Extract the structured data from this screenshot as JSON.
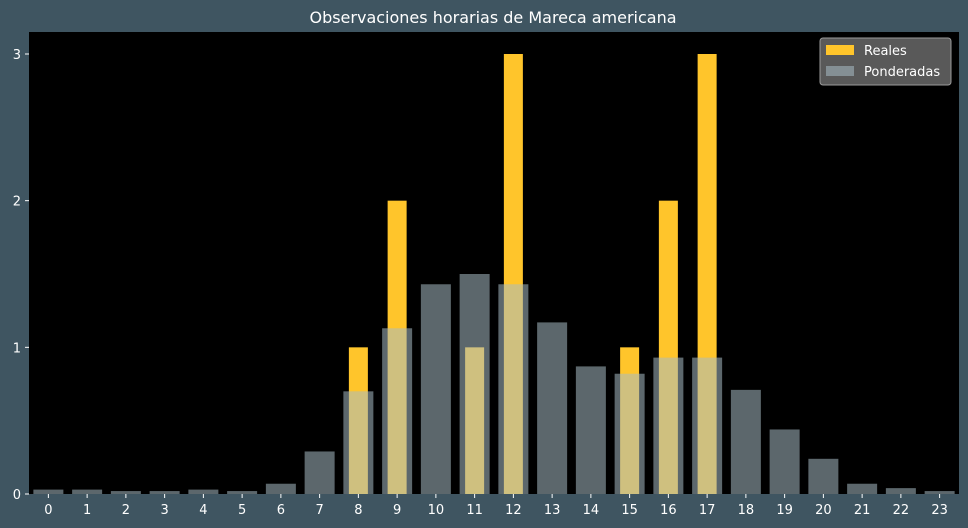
{
  "chart_data": {
    "type": "bar",
    "title": "Observaciones horarias de Mareca americana",
    "xlabel": "",
    "ylabel": "",
    "categories": [
      "0",
      "1",
      "2",
      "3",
      "4",
      "5",
      "6",
      "7",
      "8",
      "9",
      "10",
      "11",
      "12",
      "13",
      "14",
      "15",
      "16",
      "17",
      "18",
      "19",
      "20",
      "21",
      "22",
      "23"
    ],
    "series": [
      {
        "name": "Reales",
        "color": "#ffc52b",
        "values": [
          0,
          0,
          0,
          0,
          0,
          0,
          0,
          0,
          1,
          2,
          0,
          1,
          3,
          0,
          0,
          1,
          2,
          3,
          0,
          0,
          0,
          0,
          0,
          0
        ]
      },
      {
        "name": "Ponderadas",
        "color": "#a8bcc4",
        "opacity": 0.55,
        "values": [
          0.03,
          0.03,
          0.02,
          0.02,
          0.03,
          0.02,
          0.07,
          0.29,
          0.7,
          1.13,
          1.43,
          1.5,
          1.43,
          1.17,
          0.87,
          0.82,
          0.93,
          0.93,
          0.71,
          0.44,
          0.24,
          0.07,
          0.04,
          0.02
        ]
      }
    ],
    "yticks": [
      "0",
      "1",
      "2",
      "3"
    ],
    "ylim": [
      0,
      3.15
    ],
    "grid": false,
    "legend_position": "top-right",
    "plot_background": "#000000",
    "figure_background": "#3f5561"
  }
}
